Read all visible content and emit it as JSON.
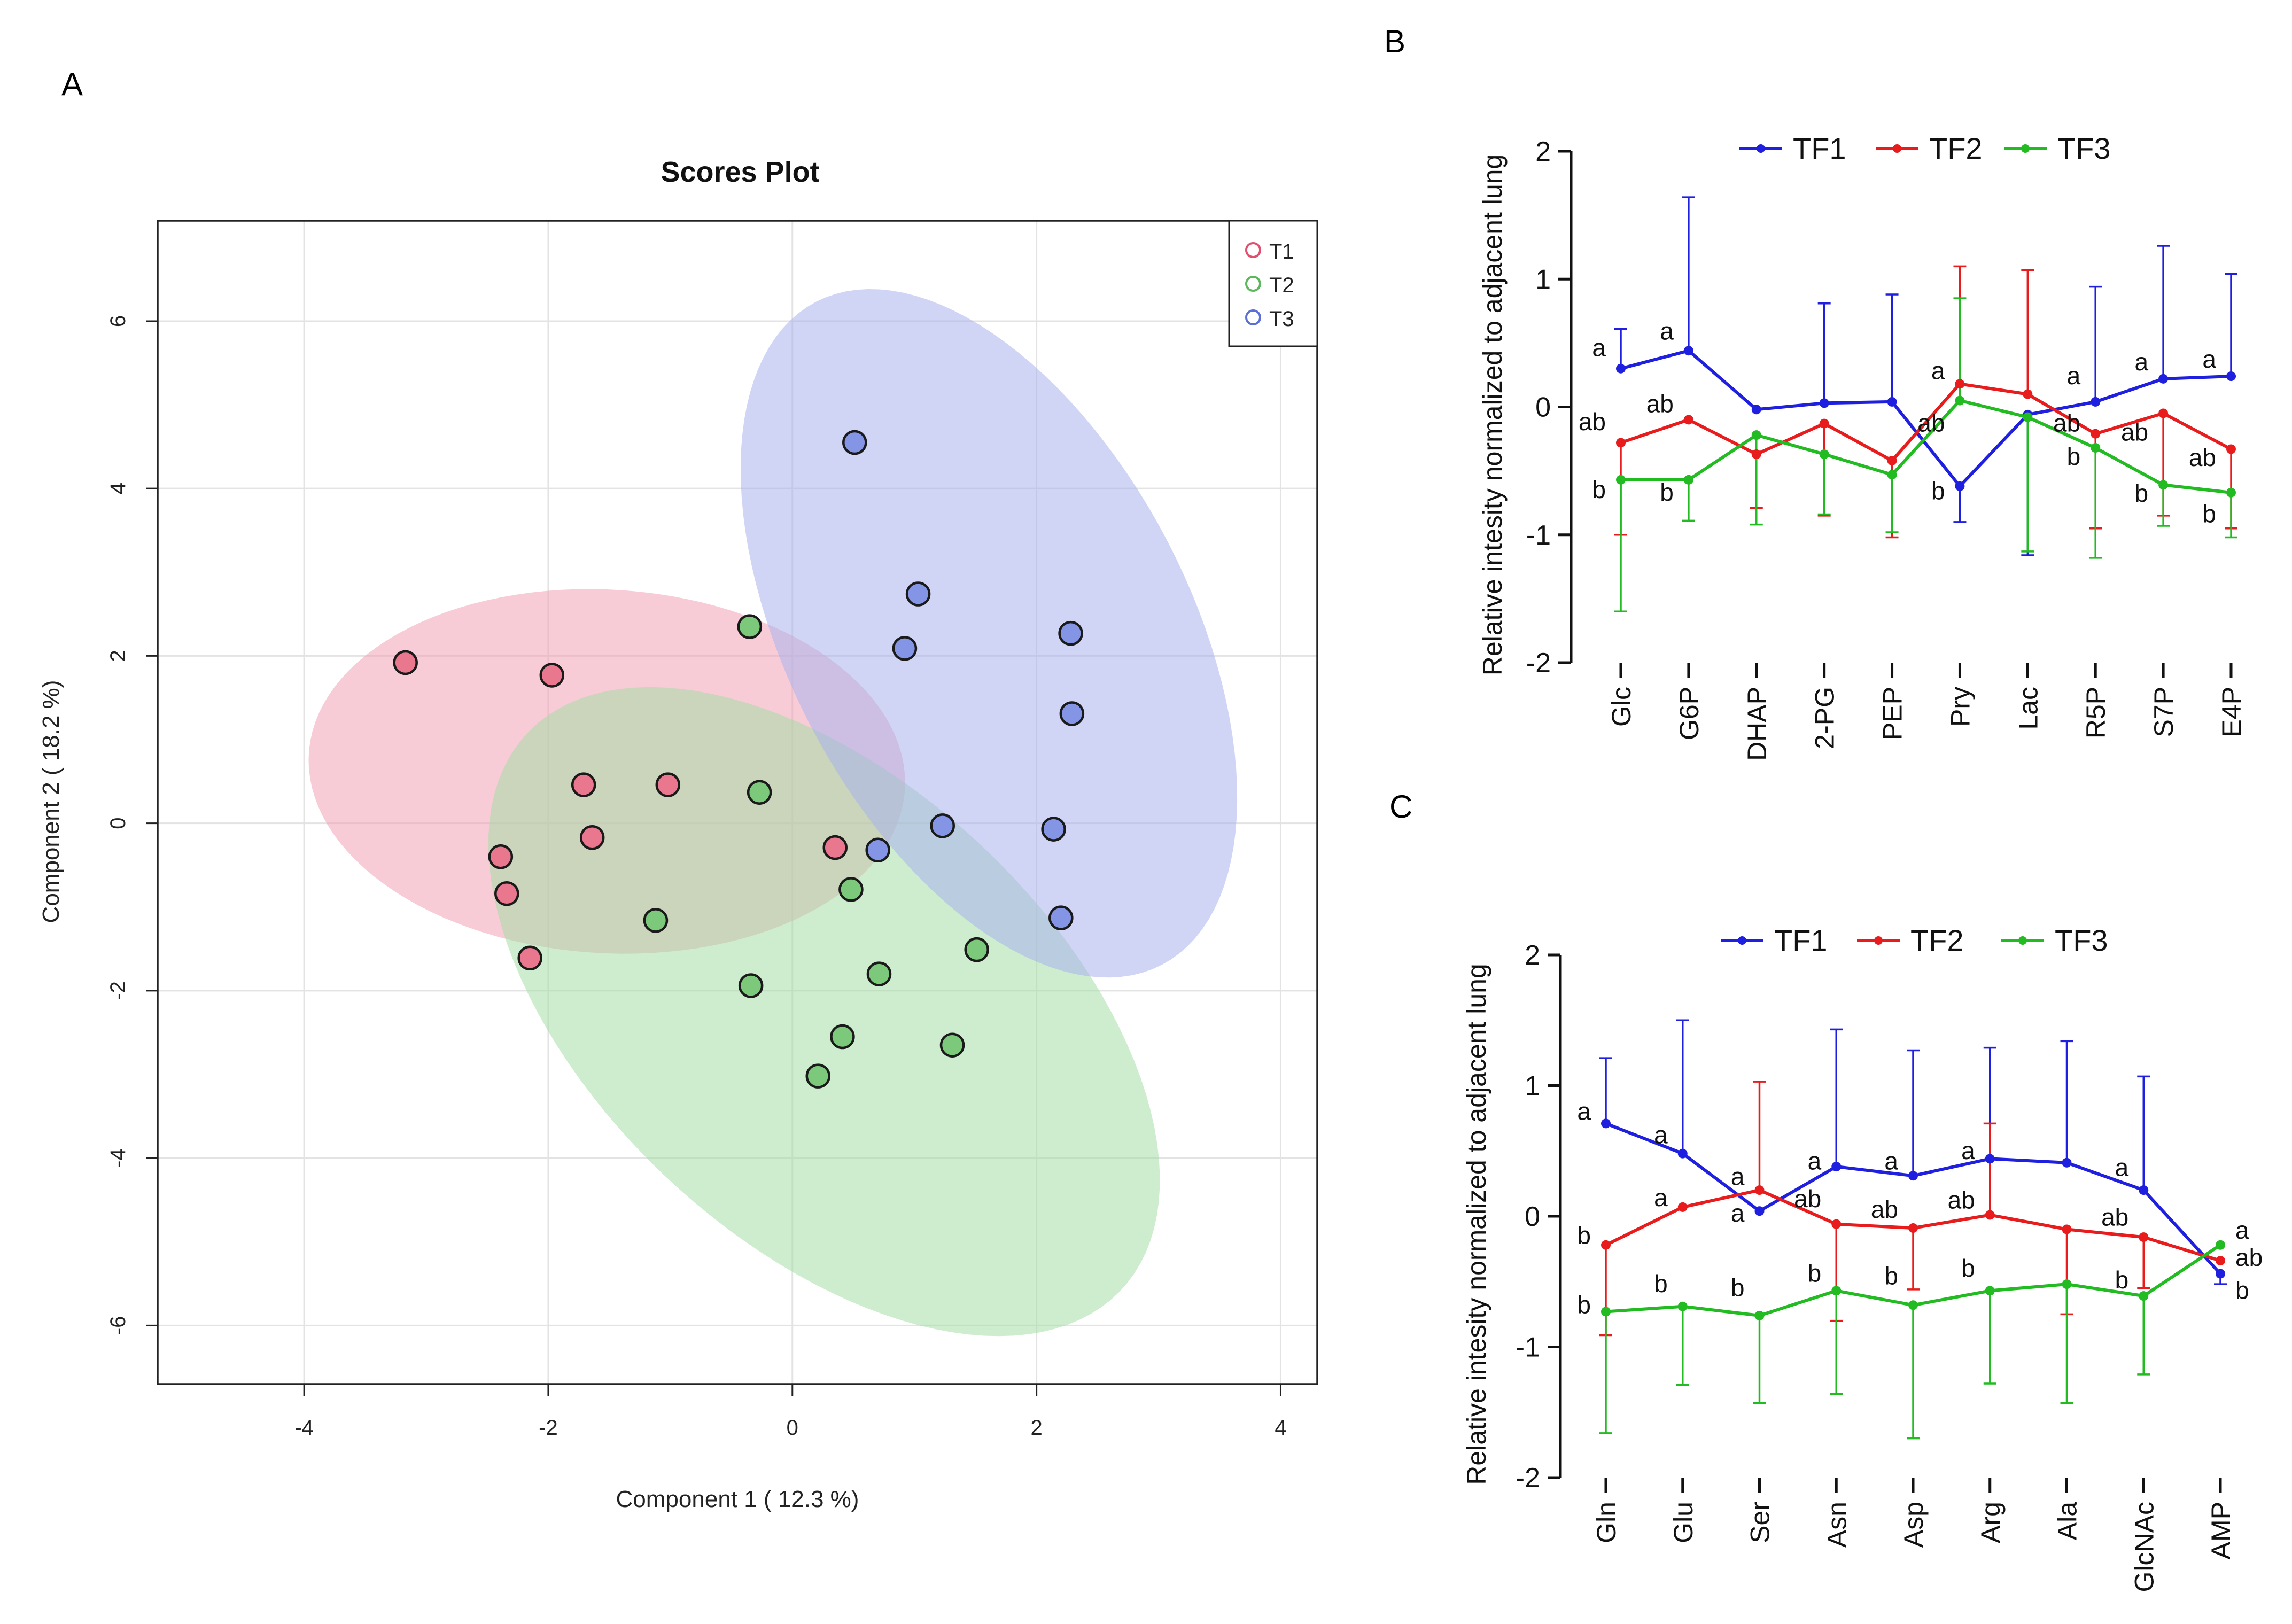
{
  "panel_labels": {
    "a": "A",
    "b": "B",
    "c": "C"
  },
  "colors": {
    "T1": "#e0506e",
    "T2": "#5cb85c",
    "T3": "#5b6fd6",
    "TF1": "#1f1fe0",
    "TF2": "#e81c1c",
    "TF3": "#22bb22",
    "ellipse_T1": "#f2a2b6",
    "ellipse_T2": "#a6dca6",
    "ellipse_T3": "#a9b2ec",
    "point_T1": "#e9788f",
    "point_T2": "#7cc97c",
    "point_T3": "#8595e6"
  },
  "chart_data": [
    {
      "id": "A",
      "type": "scatter",
      "title": "Scores Plot",
      "xlabel": "Component 1 ( 12.3 %)",
      "ylabel": "Component 2 ( 18.2 %)",
      "xlim": [
        -5.2,
        4.3
      ],
      "ylim": [
        -6.7,
        7.2
      ],
      "xticks": [
        -4,
        -2,
        0,
        2,
        4
      ],
      "xtick_labels": [
        "-4",
        "-2",
        "0",
        "2",
        "4"
      ],
      "yticks": [
        -6,
        -4,
        -2,
        0,
        2,
        4,
        6
      ],
      "ytick_labels": [
        "-6",
        "-4",
        "-2",
        "0",
        "2",
        "4",
        "6"
      ],
      "grid": true,
      "legend_position": "top-right",
      "series": [
        {
          "name": "T1",
          "points": [
            [
              -3.17,
              1.92
            ],
            [
              -1.97,
              1.77
            ],
            [
              -1.71,
              0.46
            ],
            [
              -1.02,
              0.46
            ],
            [
              -2.39,
              -0.4
            ],
            [
              -2.34,
              -0.84
            ],
            [
              -1.64,
              -0.17
            ],
            [
              -2.15,
              -1.61
            ],
            [
              0.35,
              -0.29
            ]
          ]
        },
        {
          "name": "T2",
          "points": [
            [
              -0.35,
              2.35
            ],
            [
              -0.27,
              0.37
            ],
            [
              -1.12,
              -1.16
            ],
            [
              0.48,
              -0.79
            ],
            [
              -0.34,
              -1.94
            ],
            [
              0.71,
              -1.8
            ],
            [
              1.51,
              -1.51
            ],
            [
              0.41,
              -2.55
            ],
            [
              1.31,
              -2.65
            ],
            [
              0.21,
              -3.02
            ]
          ]
        },
        {
          "name": "T3",
          "points": [
            [
              0.51,
              4.55
            ],
            [
              1.03,
              2.74
            ],
            [
              0.92,
              2.09
            ],
            [
              2.28,
              2.27
            ],
            [
              2.29,
              1.31
            ],
            [
              0.7,
              -0.32
            ],
            [
              1.23,
              -0.03
            ],
            [
              2.14,
              -0.07
            ],
            [
              2.2,
              -1.13
            ]
          ]
        }
      ],
      "ellipses": [
        {
          "name": "T1",
          "center": [
            -1.52,
            0.62
          ],
          "semi_axes": [
            2.46,
            2.16
          ],
          "angle_deg": -14
        },
        {
          "name": "T2",
          "center": [
            0.26,
            -2.25
          ],
          "semi_axes": [
            4.24,
            2.15
          ],
          "angle_deg": -62
        },
        {
          "name": "T3",
          "center": [
            1.61,
            2.27
          ],
          "semi_axes": [
            4.25,
            1.73
          ],
          "angle_deg": -74
        }
      ]
    },
    {
      "id": "B",
      "type": "line",
      "ylabel": "Relative intesity normalized to adjacent lung",
      "ylim": [
        -2,
        2
      ],
      "yticks": [
        -2,
        -1,
        0,
        1,
        2
      ],
      "ytick_labels": [
        "-2",
        "-1",
        "0",
        "1",
        "2"
      ],
      "categories": [
        "Glc",
        "G6P",
        "DHAP",
        "2-PG",
        "PEP",
        "Pry",
        "Lac",
        "R5P",
        "S7P",
        "E4P"
      ],
      "legend_position": "top",
      "series": [
        {
          "name": "TF1",
          "values": [
            0.3,
            0.44,
            -0.02,
            0.03,
            0.04,
            -0.62,
            -0.06,
            0.04,
            0.22,
            0.24
          ],
          "err_up": [
            0.31,
            1.2,
            0,
            0.78,
            0.84,
            0,
            0,
            0.9,
            1.04,
            0.8
          ],
          "err_down": [
            0,
            0,
            0,
            0,
            0,
            0.28,
            1.1,
            0,
            0,
            0
          ]
        },
        {
          "name": "TF2",
          "values": [
            -0.28,
            -0.1,
            -0.37,
            -0.13,
            -0.42,
            0.18,
            0.1,
            -0.21,
            -0.05,
            -0.33
          ],
          "err_up": [
            0,
            0,
            0,
            0,
            0,
            0.92,
            0.97,
            0,
            0,
            0
          ],
          "err_down": [
            0.72,
            0,
            0.42,
            0.72,
            0.6,
            0,
            0,
            0.74,
            0.8,
            0.62
          ]
        },
        {
          "name": "TF3",
          "values": [
            -0.57,
            -0.57,
            -0.22,
            -0.37,
            -0.53,
            0.05,
            -0.08,
            -0.32,
            -0.61,
            -0.67
          ],
          "err_up": [
            0,
            0,
            0,
            0,
            0,
            0.8,
            0,
            0,
            0,
            0
          ],
          "err_down": [
            1.03,
            0.32,
            0.7,
            0.47,
            0.45,
            0,
            1.05,
            0.86,
            0.32,
            0.35
          ]
        }
      ],
      "annotations": [
        {
          "category": "Glc",
          "y": 0.46,
          "text": "a"
        },
        {
          "category": "Glc",
          "y": -0.12,
          "text": "ab"
        },
        {
          "category": "Glc",
          "y": -0.65,
          "text": "b"
        },
        {
          "category": "G6P",
          "y": 0.59,
          "text": "a"
        },
        {
          "category": "G6P",
          "y": 0.02,
          "text": "ab"
        },
        {
          "category": "G6P",
          "y": -0.67,
          "text": "b"
        },
        {
          "category": "Pry",
          "y": 0.28,
          "text": "a"
        },
        {
          "category": "Pry",
          "y": -0.13,
          "text": "ab"
        },
        {
          "category": "Pry",
          "y": -0.66,
          "text": "b"
        },
        {
          "category": "R5P",
          "y": 0.24,
          "text": "a"
        },
        {
          "category": "R5P",
          "y": -0.13,
          "text": "ab"
        },
        {
          "category": "R5P",
          "y": -0.39,
          "text": "b"
        },
        {
          "category": "S7P",
          "y": 0.35,
          "text": "a"
        },
        {
          "category": "S7P",
          "y": -0.2,
          "text": "ab"
        },
        {
          "category": "S7P",
          "y": -0.68,
          "text": "b"
        },
        {
          "category": "E4P",
          "y": 0.37,
          "text": "a"
        },
        {
          "category": "E4P",
          "y": -0.4,
          "text": "ab"
        },
        {
          "category": "E4P",
          "y": -0.84,
          "text": "b"
        }
      ]
    },
    {
      "id": "C",
      "type": "line",
      "ylabel": "Relative intesity normalized to adjacent lung",
      "ylim": [
        -2,
        2
      ],
      "yticks": [
        -2,
        -1,
        0,
        1,
        2
      ],
      "ytick_labels": [
        "-2",
        "-1",
        "0",
        "1",
        "2"
      ],
      "categories": [
        "Gln",
        "Glu",
        "Ser",
        "Asn",
        "Asp",
        "Arg",
        "Ala",
        "GlcNAc",
        "AMP"
      ],
      "legend_position": "top",
      "series": [
        {
          "name": "TF1",
          "values": [
            0.71,
            0.48,
            0.04,
            0.38,
            0.31,
            0.44,
            0.41,
            0.2,
            -0.44
          ],
          "err_up": [
            0.5,
            1.02,
            0,
            1.05,
            0.96,
            0.85,
            0.93,
            0.87,
            0
          ],
          "err_down": [
            0,
            0,
            0,
            0,
            0,
            0,
            0,
            0,
            0.08
          ]
        },
        {
          "name": "TF2",
          "values": [
            -0.22,
            0.07,
            0.2,
            -0.06,
            -0.09,
            0.01,
            -0.1,
            -0.16,
            -0.34
          ],
          "err_up": [
            0,
            0,
            0.83,
            0,
            0,
            0.7,
            0,
            0,
            0
          ],
          "err_down": [
            0.69,
            0,
            0,
            0.74,
            0.47,
            0,
            0.65,
            0.39,
            0
          ]
        },
        {
          "name": "TF3",
          "values": [
            -0.73,
            -0.69,
            -0.76,
            -0.57,
            -0.68,
            -0.57,
            -0.52,
            -0.61,
            -0.22
          ],
          "err_up": [
            0,
            0,
            0,
            0,
            0,
            0,
            0,
            0,
            0
          ],
          "err_down": [
            0.93,
            0.6,
            0.67,
            0.79,
            1.02,
            0.71,
            0.91,
            0.6,
            0
          ]
        }
      ],
      "annotations": [
        {
          "category": "Gln",
          "y": 0.8,
          "text": "a"
        },
        {
          "category": "Gln",
          "y": -0.15,
          "text": "b"
        },
        {
          "category": "Gln",
          "y": -0.68,
          "text": "b"
        },
        {
          "category": "Glu",
          "y": 0.62,
          "text": "a"
        },
        {
          "category": "Glu",
          "y": 0.14,
          "text": "a"
        },
        {
          "category": "Glu",
          "y": -0.52,
          "text": "b"
        },
        {
          "category": "Ser",
          "y": 0.3,
          "text": "a"
        },
        {
          "category": "Ser",
          "y": 0.02,
          "text": "a"
        },
        {
          "category": "Ser",
          "y": -0.55,
          "text": "b"
        },
        {
          "category": "Asn",
          "y": 0.42,
          "text": "a"
        },
        {
          "category": "Asn",
          "y": 0.13,
          "text": "ab"
        },
        {
          "category": "Asn",
          "y": -0.44,
          "text": "b"
        },
        {
          "category": "Asp",
          "y": 0.42,
          "text": "a"
        },
        {
          "category": "Asp",
          "y": 0.05,
          "text": "ab"
        },
        {
          "category": "Asp",
          "y": -0.46,
          "text": "b"
        },
        {
          "category": "Arg",
          "y": 0.5,
          "text": "a"
        },
        {
          "category": "Arg",
          "y": 0.12,
          "text": "ab"
        },
        {
          "category": "Arg",
          "y": -0.4,
          "text": "b"
        },
        {
          "category": "GlcNAc",
          "y": 0.37,
          "text": "a"
        },
        {
          "category": "GlcNAc",
          "y": -0.01,
          "text": "ab"
        },
        {
          "category": "GlcNAc",
          "y": -0.49,
          "text": "b"
        },
        {
          "category": "AMP",
          "y": -0.11,
          "text": "a",
          "side": "right"
        },
        {
          "category": "AMP",
          "y": -0.32,
          "text": "ab",
          "side": "right"
        },
        {
          "category": "AMP",
          "y": -0.57,
          "text": "b",
          "side": "right"
        }
      ]
    }
  ]
}
